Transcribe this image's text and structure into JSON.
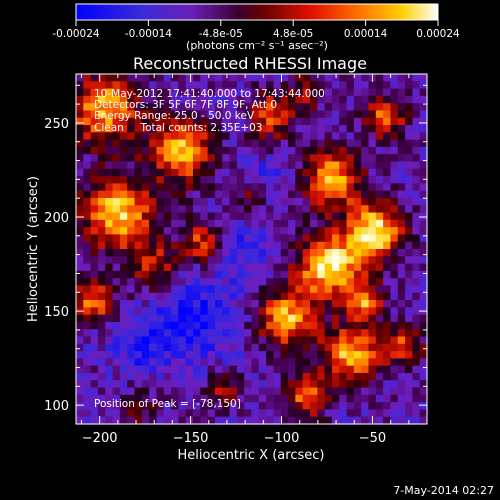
{
  "colorbar": {
    "ticks": [
      "-0.00024",
      "-0.00014",
      "-4.8e-05",
      "4.8e-05",
      "0.00014",
      "0.00024"
    ],
    "units_line": "(photons cm⁻² s⁻¹ asec⁻²)"
  },
  "chart_data": {
    "type": "heatmap",
    "title": "Reconstructed RHESSI Image",
    "xlabel": "Heliocentric X (arcsec)",
    "ylabel": "Heliocentric Y (arcsec)",
    "xlim": [
      -213,
      -20
    ],
    "ylim": [
      90,
      276
    ],
    "x_ticks": [
      -200,
      -150,
      -100,
      -50
    ],
    "y_ticks": [
      100,
      150,
      200,
      250
    ],
    "x_tick_labels": [
      "−200",
      "−150",
      "−100",
      "−50"
    ],
    "y_tick_labels": [
      "100",
      "150",
      "200",
      "250"
    ],
    "value_range": [
      -0.00024,
      0.00024
    ],
    "colormap": "rainbow-to-hot (blue, purple, red, orange, yellow, white)",
    "peak": [
      -78,
      150
    ],
    "annotations": [
      "10-May-2012 17:41:40.000 to 17:43:44.000",
      "Detectors: 3F 5F 6F 7F 8F 9F, Att 0",
      "Energy Range: 25.0 - 50.0 keV",
      "Clean     Total counts: 2.35E+03"
    ],
    "peak_label": "Position of Peak = [-78,150]",
    "timestamp": "7-May-2014 02:27"
  }
}
